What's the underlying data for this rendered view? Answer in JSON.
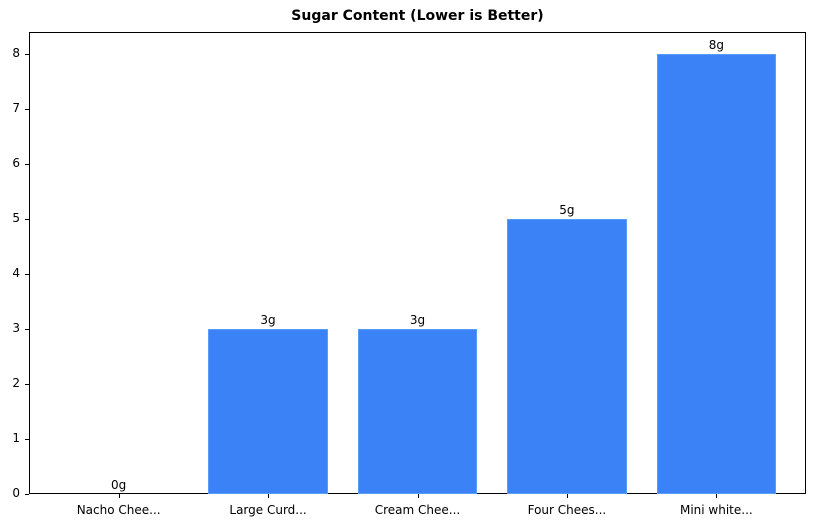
{
  "chart_data": {
    "type": "bar",
    "title": "Sugar Content (Lower is Better)",
    "xlabel": "",
    "ylabel": "",
    "categories": [
      "Nacho Chee...",
      "Large Curd...",
      "Cream Chee...",
      "Four Chees...",
      "Mini white..."
    ],
    "values": [
      0,
      3,
      3,
      5,
      8
    ],
    "data_labels": [
      "0g",
      "3g",
      "3g",
      "5g",
      "8g"
    ],
    "ylim": [
      0,
      8.4
    ],
    "yticks": [
      0,
      1,
      2,
      3,
      4,
      5,
      6,
      7,
      8
    ],
    "grid": false,
    "legend": null,
    "bar_color": "#3b82f6"
  }
}
